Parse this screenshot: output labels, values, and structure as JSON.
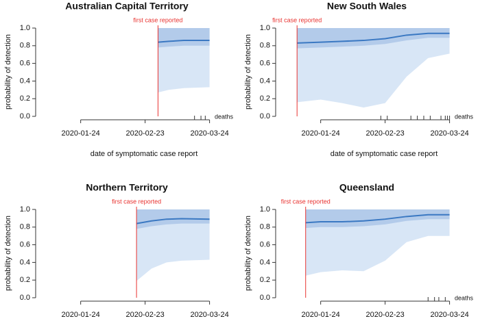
{
  "chart_data": [
    {
      "type": "band_line",
      "title": "Australian Capital Territory",
      "annotation": "first case reported",
      "first_case": "2020-02-29",
      "ylabel": "probability of detection",
      "xlabel": "date of symptomatic case report",
      "deaths_label": "deaths",
      "deaths": [
        "2020-03-17",
        "2020-03-20",
        "2020-03-22"
      ],
      "x": [
        "2020-02-29",
        "2020-03-05",
        "2020-03-12",
        "2020-03-24"
      ],
      "line": [
        0.84,
        0.85,
        0.86,
        0.86
      ],
      "inner_lower": [
        0.78,
        0.79,
        0.8,
        0.8
      ],
      "outer_lower": [
        0.27,
        0.3,
        0.32,
        0.33
      ],
      "upper": [
        1,
        1,
        1,
        1
      ],
      "xlim": [
        "2020-01-04",
        "2020-03-27"
      ],
      "xticks": [
        "2020-01-24",
        "2020-02-23",
        "2020-03-24"
      ],
      "ylim": [
        0,
        1
      ],
      "yticks": [
        {
          "value": 0,
          "label": "0.0"
        },
        0.2,
        0.4,
        0.6,
        0.8,
        {
          "value": 1,
          "label": "1.0"
        }
      ],
      "line_color": "#3a78c2",
      "inner_color": "#b3cbea",
      "outer_color": "#d8e6f6",
      "annotation_color": "#e8322f"
    },
    {
      "type": "band_line",
      "title": "New South Wales",
      "annotation": "first case reported",
      "first_case": "2020-01-13",
      "ylabel": "probability of detection",
      "xlabel": "date of symptomatic case report",
      "deaths_label": "deaths",
      "deaths": [
        "2020-02-21",
        "2020-02-24",
        "2020-03-06",
        "2020-03-09",
        "2020-03-12",
        "2020-03-15",
        "2020-03-20",
        "2020-03-22",
        "2020-03-23",
        "2020-03-24"
      ],
      "x": [
        "2020-01-13",
        "2020-01-24",
        "2020-02-03",
        "2020-02-13",
        "2020-02-23",
        "2020-03-04",
        "2020-03-14",
        "2020-03-24"
      ],
      "line": [
        0.83,
        0.84,
        0.85,
        0.86,
        0.88,
        0.92,
        0.94,
        0.94
      ],
      "inner_lower": [
        0.77,
        0.78,
        0.79,
        0.8,
        0.82,
        0.86,
        0.89,
        0.89
      ],
      "outer_lower": [
        0.16,
        0.19,
        0.15,
        0.1,
        0.15,
        0.45,
        0.66,
        0.71
      ],
      "upper": [
        1,
        1,
        1,
        1,
        1,
        1,
        1,
        1
      ],
      "xlim": [
        "2020-01-04",
        "2020-03-27"
      ],
      "xticks": [
        "2020-01-24",
        "2020-02-23",
        "2020-03-24"
      ],
      "ylim": [
        0,
        1
      ],
      "yticks": [
        {
          "value": 0,
          "label": "0.0"
        },
        0.2,
        0.4,
        0.6,
        0.8,
        {
          "value": 1,
          "label": "1.0"
        }
      ],
      "line_color": "#3a78c2",
      "inner_color": "#b3cbea",
      "outer_color": "#d8e6f6",
      "annotation_color": "#e8322f"
    },
    {
      "type": "band_line",
      "title": "Northern Territory",
      "annotation": "first case reported",
      "first_case": "2020-02-19",
      "ylabel": "probability of detection",
      "x": [
        "2020-02-19",
        "2020-02-26",
        "2020-03-04",
        "2020-03-11",
        "2020-03-24"
      ],
      "line": [
        0.84,
        0.87,
        0.89,
        0.895,
        0.89
      ],
      "inner_lower": [
        0.78,
        0.81,
        0.83,
        0.84,
        0.84
      ],
      "outer_lower": [
        0.19,
        0.33,
        0.4,
        0.42,
        0.43
      ],
      "upper": [
        1,
        1,
        1,
        1,
        1
      ],
      "xlim": [
        "2020-01-04",
        "2020-03-27"
      ],
      "xticks": [
        "2020-01-24",
        "2020-02-23",
        "2020-03-24"
      ],
      "ylim": [
        0,
        1
      ],
      "yticks": [
        {
          "value": 0,
          "label": "0.0"
        },
        0.2,
        0.4,
        0.6,
        0.8,
        {
          "value": 1,
          "label": "1.0"
        }
      ],
      "line_color": "#3a78c2",
      "inner_color": "#b3cbea",
      "outer_color": "#d8e6f6",
      "annotation_color": "#e8322f"
    },
    {
      "type": "band_line",
      "title": "Queensland",
      "annotation": "first case reported",
      "first_case": "2020-01-17",
      "ylabel": "probability of detection",
      "deaths_label": "deaths",
      "deaths": [
        "2020-03-14",
        "2020-03-17",
        "2020-03-19",
        "2020-03-22"
      ],
      "x": [
        "2020-01-17",
        "2020-01-24",
        "2020-02-03",
        "2020-02-13",
        "2020-02-23",
        "2020-03-04",
        "2020-03-14",
        "2020-03-24"
      ],
      "line": [
        0.85,
        0.86,
        0.86,
        0.87,
        0.89,
        0.92,
        0.94,
        0.94
      ],
      "inner_lower": [
        0.79,
        0.8,
        0.8,
        0.81,
        0.83,
        0.87,
        0.89,
        0.89
      ],
      "outer_lower": [
        0.25,
        0.29,
        0.31,
        0.3,
        0.42,
        0.63,
        0.7,
        0.7
      ],
      "upper": [
        1,
        1,
        1,
        1,
        1,
        1,
        1,
        1
      ],
      "xlim": [
        "2020-01-04",
        "2020-03-27"
      ],
      "xticks": [
        "2020-01-24",
        "2020-02-23",
        "2020-03-24"
      ],
      "ylim": [
        0,
        1
      ],
      "yticks": [
        {
          "value": 0,
          "label": "0.0"
        },
        0.2,
        0.4,
        0.6,
        0.8,
        {
          "value": 1,
          "label": "1.0"
        }
      ],
      "line_color": "#3a78c2",
      "inner_color": "#b3cbea",
      "outer_color": "#d8e6f6",
      "annotation_color": "#e8322f"
    }
  ]
}
